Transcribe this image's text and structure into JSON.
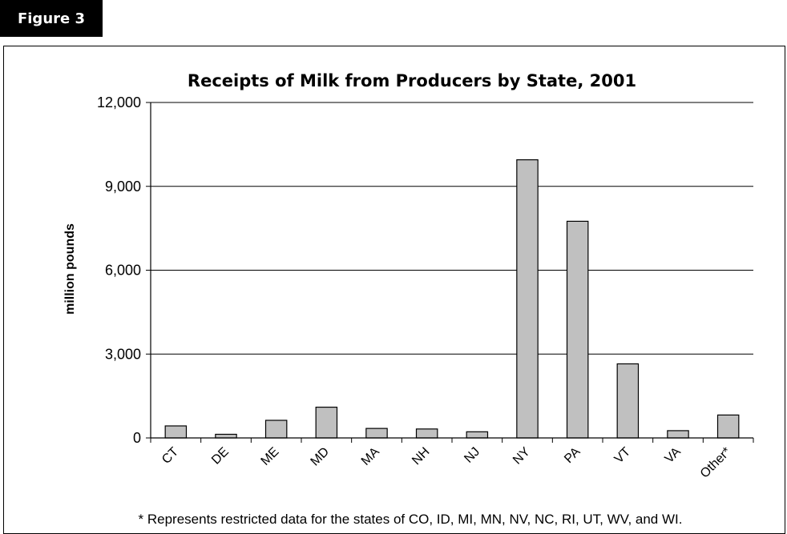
{
  "figure_label": "Figure 3",
  "footnote": "* Represents restricted data for the states of CO, ID, MI, MN, NV, NC, RI, UT, WV, and WI.",
  "colors": {
    "bar_fill": "#c0c0c0",
    "bar_stroke": "#000000",
    "gridline": "#000000"
  },
  "chart_data": {
    "type": "bar",
    "title": "Receipts of Milk from Producers by State, 2001",
    "xlabel": "",
    "ylabel": "million pounds",
    "categories": [
      "CT",
      "DE",
      "ME",
      "MD",
      "MA",
      "NH",
      "NJ",
      "NY",
      "PA",
      "VT",
      "VA",
      "Other*"
    ],
    "values": [
      430,
      130,
      630,
      1100,
      340,
      320,
      220,
      9950,
      7750,
      2650,
      260,
      820
    ],
    "ylim": [
      0,
      12000
    ],
    "yticks": [
      0,
      3000,
      6000,
      9000,
      12000
    ],
    "ytick_labels": [
      "0",
      "3,000",
      "6,000",
      "9,000",
      "12,000"
    ],
    "grid": "horizontal",
    "legend": "none"
  }
}
